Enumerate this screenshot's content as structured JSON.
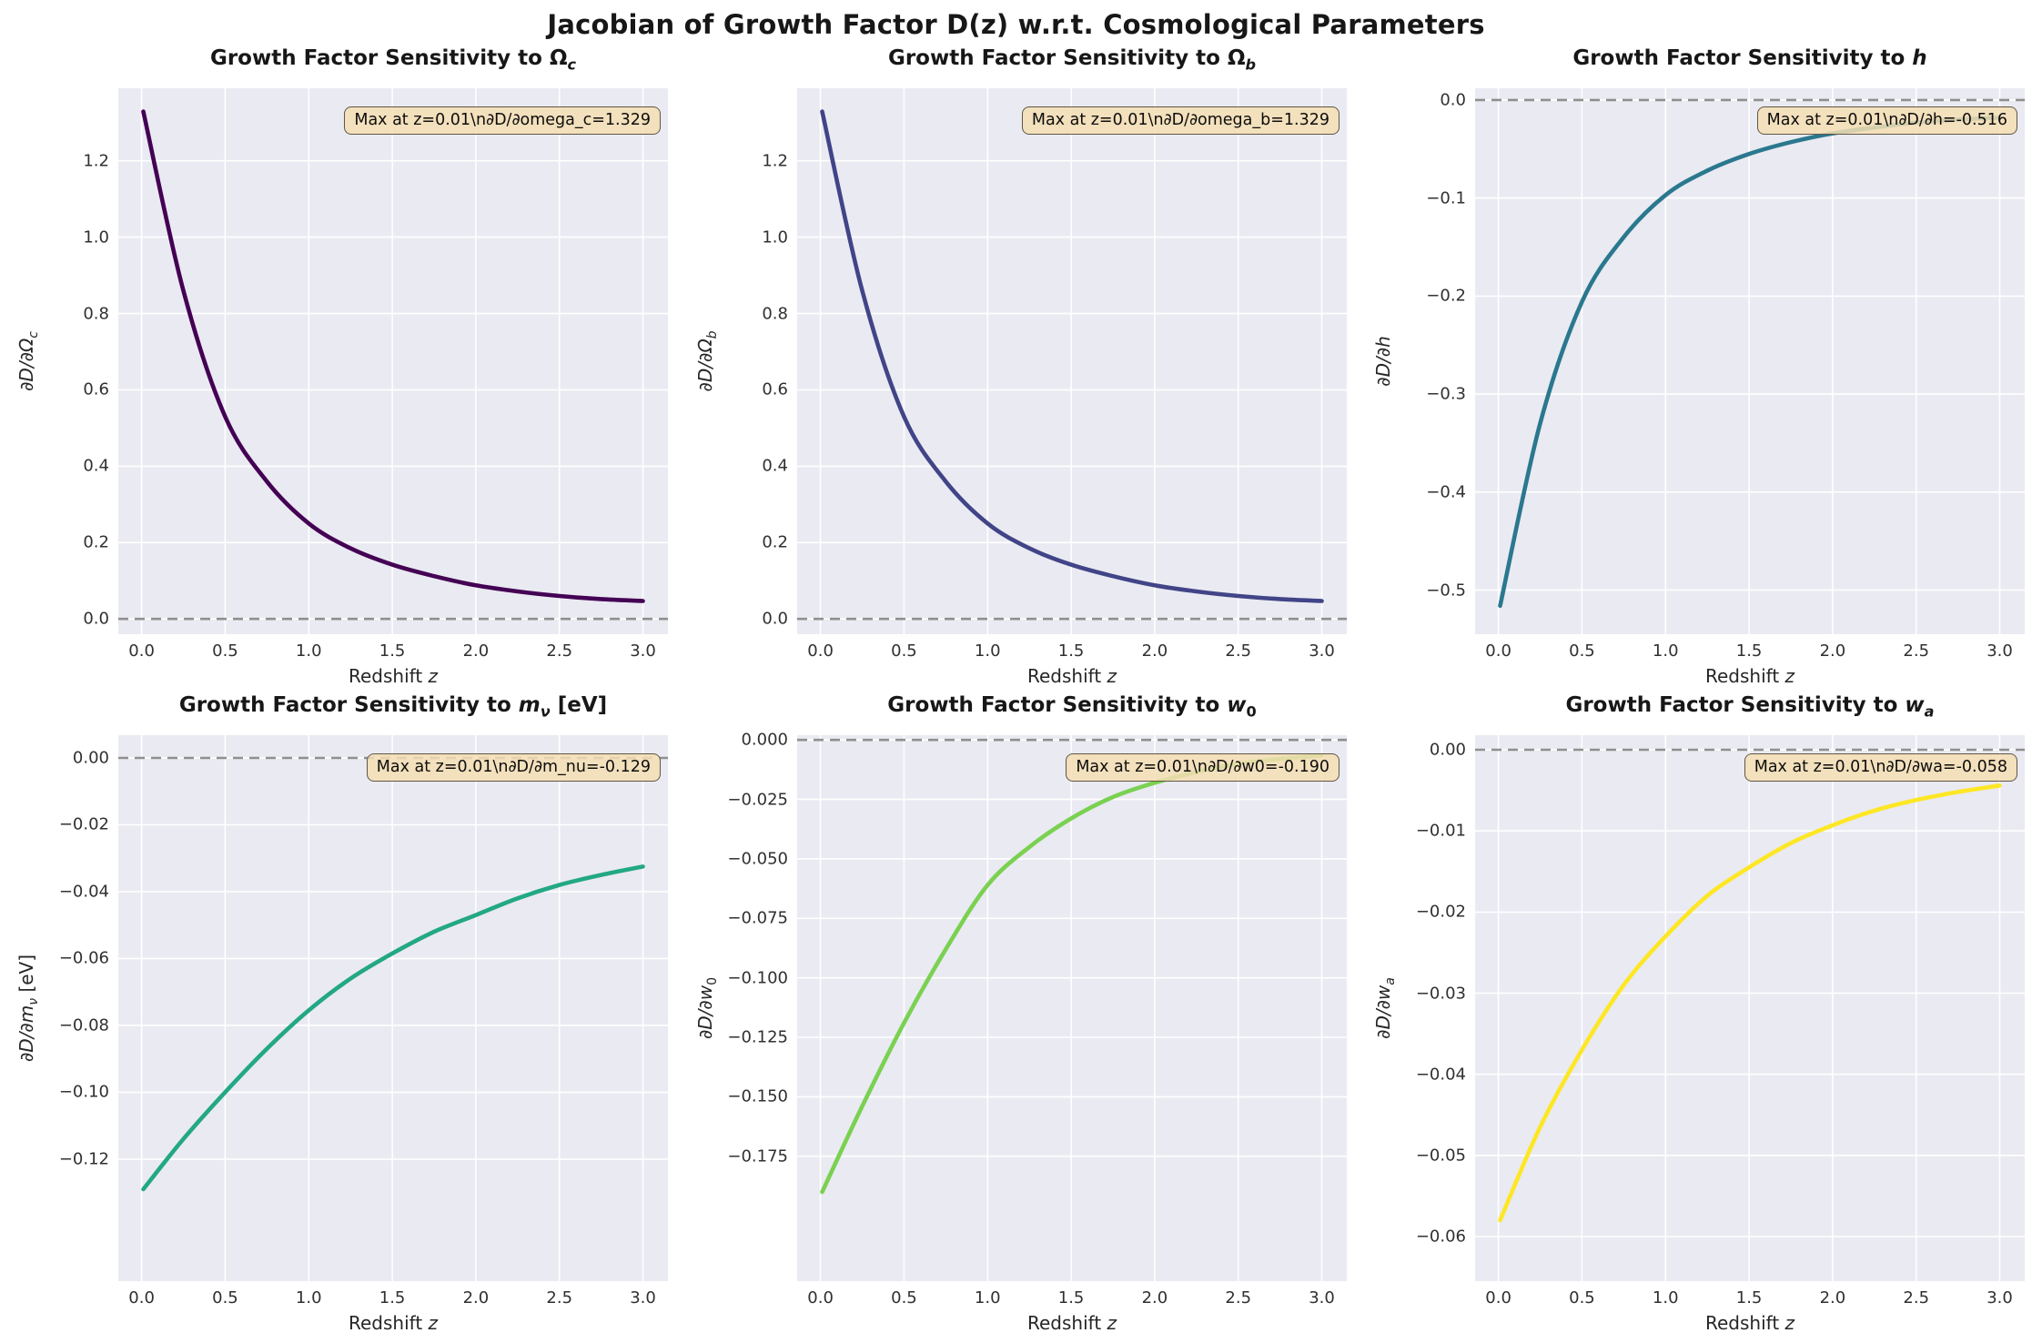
{
  "figure_title": "Jacobian of Growth Factor D(z) w.r.t. Cosmological Parameters",
  "xlabel_prefix": "Redshift ",
  "xlabel_var": "z",
  "style": {
    "axes_bg": "#eaeaf2",
    "grid_color": "#ffffff",
    "zero_line_color": "#8f8f8f",
    "annotation_bg": "rgba(245,222,179,0.85)",
    "annotation_border": "#5f5646",
    "title_color": "#171717",
    "tick_color": "#303030"
  },
  "chart_data": {
    "type": "line",
    "layout": "2 rows x 3 cols",
    "grid": true,
    "xlabel": "Redshift z",
    "x_shared": {
      "ticks": [
        0.0,
        0.5,
        1.0,
        1.5,
        2.0,
        2.5,
        3.0
      ],
      "tick_labels": [
        "0.0",
        "0.5",
        "1.0",
        "1.5",
        "2.0",
        "2.5",
        "3.0"
      ],
      "xlim": [
        -0.1395,
        3.1495
      ]
    },
    "zero_reference_line": 0.0,
    "charts": [
      {
        "title": "Growth Factor Sensitivity to Ω_c",
        "title_prefix": "Growth Factor Sensitivity to ",
        "param_main": "Ω",
        "param_italic": false,
        "param_sub": "c",
        "sub_italic": true,
        "param_suffix": "",
        "ylabel": "∂D/∂Ω_c",
        "ylabel_main": "∂D/∂Ω",
        "ylabel_sub": "c",
        "ylabel_suffix": "",
        "annotation": "Max at z=0.01\\n∂D/∂omega_c=1.329",
        "line_color": "#440154",
        "yticks": [
          0.0,
          0.2,
          0.4,
          0.6,
          0.8,
          1.0,
          1.2
        ],
        "ytick_labels": [
          "0.0",
          "0.2",
          "0.4",
          "0.6",
          "0.8",
          "1.0",
          "1.2"
        ],
        "ylim": [
          -0.04,
          1.39
        ],
        "x": [
          0.01,
          0.25,
          0.5,
          0.75,
          1.0,
          1.25,
          1.5,
          1.75,
          2.0,
          2.25,
          2.5,
          2.75,
          3.0
        ],
        "y": [
          1.329,
          0.86,
          0.53,
          0.36,
          0.25,
          0.185,
          0.142,
          0.112,
          0.088,
          0.072,
          0.06,
          0.052,
          0.047
        ]
      },
      {
        "title": "Growth Factor Sensitivity to Ω_b",
        "title_prefix": "Growth Factor Sensitivity to ",
        "param_main": "Ω",
        "param_italic": false,
        "param_sub": "b",
        "sub_italic": true,
        "param_suffix": "",
        "ylabel": "∂D/∂Ω_b",
        "ylabel_main": "∂D/∂Ω",
        "ylabel_sub": "b",
        "ylabel_suffix": "",
        "annotation": "Max at z=0.01\\n∂D/∂omega_b=1.329",
        "line_color": "#414487",
        "yticks": [
          0.0,
          0.2,
          0.4,
          0.6,
          0.8,
          1.0,
          1.2
        ],
        "ytick_labels": [
          "0.0",
          "0.2",
          "0.4",
          "0.6",
          "0.8",
          "1.0",
          "1.2"
        ],
        "ylim": [
          -0.04,
          1.39
        ],
        "x": [
          0.01,
          0.25,
          0.5,
          0.75,
          1.0,
          1.25,
          1.5,
          1.75,
          2.0,
          2.25,
          2.5,
          2.75,
          3.0
        ],
        "y": [
          1.329,
          0.86,
          0.53,
          0.36,
          0.25,
          0.185,
          0.142,
          0.112,
          0.088,
          0.072,
          0.06,
          0.052,
          0.047
        ]
      },
      {
        "title": "Growth Factor Sensitivity to h",
        "title_prefix": "Growth Factor Sensitivity to ",
        "param_main": "h",
        "param_italic": true,
        "param_sub": "",
        "sub_italic": false,
        "param_suffix": "",
        "ylabel": "∂D/∂h",
        "ylabel_main": "∂D/∂h",
        "ylabel_sub": "",
        "ylabel_suffix": "",
        "annotation": "Max at z=0.01\\n∂D/∂h=-0.516",
        "line_color": "#2a788e",
        "yticks": [
          0.0,
          -0.1,
          -0.2,
          -0.3,
          -0.4,
          -0.5
        ],
        "ytick_labels": [
          "0.0",
          "−0.1",
          "−0.2",
          "−0.3",
          "−0.4",
          "−0.5"
        ],
        "ylim": [
          -0.545,
          0.012
        ],
        "x": [
          0.01,
          0.25,
          0.5,
          0.75,
          1.0,
          1.25,
          1.5,
          1.75,
          2.0,
          2.25,
          2.5,
          2.75,
          3.0
        ],
        "y": [
          -0.516,
          -0.33,
          -0.206,
          -0.14,
          -0.097,
          -0.072,
          -0.055,
          -0.043,
          -0.034,
          -0.028,
          -0.023,
          -0.02,
          -0.018
        ]
      },
      {
        "title": "Growth Factor Sensitivity to m_ν [eV]",
        "title_prefix": "Growth Factor Sensitivity to ",
        "param_main": "m",
        "param_italic": true,
        "param_sub": "ν",
        "sub_italic": true,
        "param_suffix": " [eV]",
        "ylabel": "∂D/∂m_ν [eV]",
        "ylabel_main": "∂D/∂m",
        "ylabel_sub": "ν",
        "ylabel_suffix": " [eV]",
        "annotation": "Max at z=0.01\\n∂D/∂m_nu=-0.129",
        "line_color": "#22a884",
        "yticks": [
          0.0,
          -0.02,
          -0.04,
          -0.06,
          -0.08,
          -0.1,
          -0.12
        ],
        "ytick_labels": [
          "0.00",
          "−0.02",
          "−0.04",
          "−0.06",
          "−0.08",
          "−0.10",
          "−0.12"
        ],
        "ylim": [
          -0.1565,
          0.0068
        ],
        "x": [
          0.01,
          0.25,
          0.5,
          0.75,
          1.0,
          1.25,
          1.5,
          1.75,
          2.0,
          2.25,
          2.5,
          2.75,
          3.0
        ],
        "y": [
          -0.129,
          -0.114,
          -0.1,
          -0.087,
          -0.0755,
          -0.066,
          -0.0585,
          -0.052,
          -0.047,
          -0.042,
          -0.038,
          -0.035,
          -0.0325
        ]
      },
      {
        "title": "Growth Factor Sensitivity to w_0",
        "title_prefix": "Growth Factor Sensitivity to ",
        "param_main": "w",
        "param_italic": true,
        "param_sub": "0",
        "sub_italic": false,
        "param_suffix": "",
        "ylabel": "∂D/∂w_0",
        "ylabel_main": "∂D/∂w",
        "ylabel_sub": "0",
        "ylabel_suffix": "",
        "annotation": "Max at z=0.01\\n∂D/∂w0=-0.190",
        "line_color": "#7ad151",
        "yticks": [
          0.0,
          -0.025,
          -0.05,
          -0.075,
          -0.1,
          -0.125,
          -0.15,
          -0.175
        ],
        "ytick_labels": [
          "0.000",
          "−0.025",
          "−0.050",
          "−0.075",
          "−0.100",
          "−0.125",
          "−0.150",
          "−0.175"
        ],
        "ylim": [
          -0.2275,
          0.002
        ],
        "x": [
          0.01,
          0.25,
          0.5,
          0.75,
          1.0,
          1.25,
          1.5,
          1.75,
          2.0,
          2.25,
          2.5,
          2.75,
          3.0
        ],
        "y": [
          -0.19,
          -0.154,
          -0.119,
          -0.088,
          -0.061,
          -0.045,
          -0.033,
          -0.024,
          -0.018,
          -0.0135,
          -0.01,
          -0.008,
          -0.0065
        ]
      },
      {
        "title": "Growth Factor Sensitivity to w_a",
        "title_prefix": "Growth Factor Sensitivity to ",
        "param_main": "w",
        "param_italic": true,
        "param_sub": "a",
        "sub_italic": true,
        "param_suffix": "",
        "ylabel": "∂D/∂w_a",
        "ylabel_main": "∂D/∂w",
        "ylabel_sub": "a",
        "ylabel_suffix": "",
        "annotation": "Max at z=0.01\\n∂D/∂wa=-0.058",
        "line_color": "#fde725",
        "yticks": [
          0.0,
          -0.01,
          -0.02,
          -0.03,
          -0.04,
          -0.05,
          -0.06
        ],
        "ytick_labels": [
          "0.00",
          "−0.01",
          "−0.02",
          "−0.03",
          "−0.04",
          "−0.05",
          "−0.06"
        ],
        "ylim": [
          -0.0655,
          0.0018
        ],
        "x": [
          0.01,
          0.25,
          0.5,
          0.75,
          1.0,
          1.25,
          1.5,
          1.75,
          2.0,
          2.25,
          2.5,
          2.75,
          3.0
        ],
        "y": [
          -0.058,
          -0.0465,
          -0.037,
          -0.029,
          -0.023,
          -0.018,
          -0.0145,
          -0.0115,
          -0.0093,
          -0.0075,
          -0.0062,
          -0.0052,
          -0.0044
        ]
      }
    ]
  }
}
